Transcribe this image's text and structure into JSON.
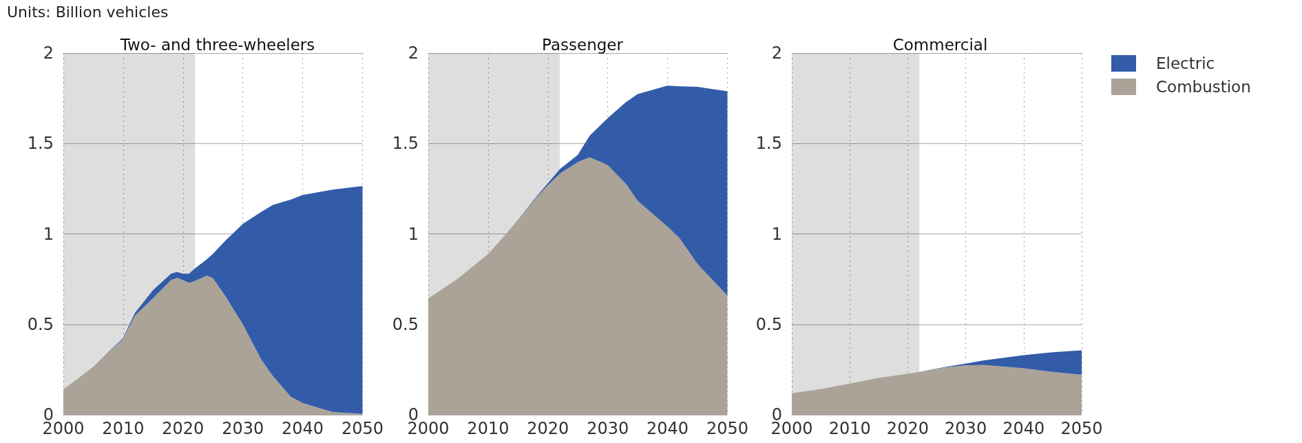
{
  "chart_data": [
    {
      "type": "area",
      "title": "Two- and three-wheelers",
      "annotations": [
        "Units: Billion vehicles"
      ],
      "stacked": true,
      "grid": true,
      "xlim": [
        2000,
        2050
      ],
      "xticks": [
        2000,
        2010,
        2020,
        2030,
        2040,
        2050
      ],
      "ylim": [
        0,
        2
      ],
      "yticks": [
        0,
        0.5,
        1,
        1.5,
        2
      ],
      "bands": [
        {
          "axis": "x",
          "from": 2000,
          "to": 2022,
          "color": "#000000"
        }
      ],
      "x": [
        2000,
        2005,
        2010,
        2012,
        2015,
        2018,
        2019,
        2020,
        2021,
        2022,
        2024,
        2025,
        2027,
        2030,
        2033,
        2035,
        2038,
        2040,
        2045,
        2050
      ],
      "series": [
        {
          "color": "#aba398",
          "values": [
            0.14,
            0.265,
            0.42,
            0.55,
            0.645,
            0.745,
            0.757,
            0.745,
            0.73,
            0.74,
            0.77,
            0.755,
            0.66,
            0.5,
            0.31,
            0.215,
            0.1,
            0.065,
            0.015,
            0.005
          ]
        },
        {
          "color": "#335ca8",
          "values": [
            null,
            0,
            0.005,
            0.015,
            0.045,
            0.035,
            0.033,
            0.035,
            0.05,
            0.07,
            0.09,
            0.135,
            0.3,
            0.555,
            0.81,
            0.945,
            1.09,
            1.15,
            1.23,
            1.26
          ]
        }
      ]
    },
    {
      "type": "area",
      "title": "Passenger",
      "stacked": true,
      "grid": true,
      "xlim": [
        2000,
        2050
      ],
      "xticks": [
        2000,
        2010,
        2020,
        2030,
        2040,
        2050
      ],
      "ylim": [
        0,
        2
      ],
      "yticks": [
        0,
        0.5,
        1,
        1.5,
        2
      ],
      "bands": [
        {
          "axis": "x",
          "from": 2000,
          "to": 2022,
          "color": "#000000"
        }
      ],
      "x": [
        2000,
        2005,
        2010,
        2013,
        2015,
        2018,
        2020,
        2022,
        2025,
        2027,
        2030,
        2033,
        2035,
        2040,
        2042,
        2045,
        2050
      ],
      "series": [
        {
          "color": "#aba398",
          "values": [
            0.643,
            0.754,
            0.889,
            1.0,
            1.079,
            1.198,
            1.27,
            1.333,
            1.397,
            1.424,
            1.38,
            1.278,
            1.183,
            1.04,
            0.976,
            0.833,
            0.659
          ]
        },
        {
          "color": "#335ca8",
          "values": [
            null,
            null,
            null,
            null,
            0,
            0.005,
            0.01,
            0.025,
            0.04,
            0.12,
            0.26,
            0.45,
            0.59,
            0.78,
            0.84,
            0.98,
            1.13
          ]
        }
      ]
    },
    {
      "type": "area",
      "title": "Commercial",
      "stacked": true,
      "grid": true,
      "legend": "top right",
      "xlim": [
        2000,
        2050
      ],
      "xticks": [
        2000,
        2010,
        2020,
        2030,
        2040,
        2050
      ],
      "ylim": [
        0,
        2
      ],
      "yticks": [
        0,
        0.5,
        1,
        1.5,
        2
      ],
      "bands": [
        {
          "axis": "x",
          "from": 2000,
          "to": 2022,
          "color": "#000000"
        }
      ],
      "x": [
        2000,
        2005,
        2010,
        2015,
        2020,
        2022,
        2026,
        2030,
        2033,
        2040,
        2045,
        2050
      ],
      "series": [
        {
          "name": "Combustion",
          "color": "#aba398",
          "values": [
            0.119,
            0.142,
            0.172,
            0.204,
            0.227,
            0.237,
            0.26,
            0.273,
            0.275,
            0.257,
            0.237,
            0.221
          ]
        },
        {
          "name": "Electric",
          "color": "#335ca8",
          "values": [
            null,
            null,
            null,
            null,
            null,
            0,
            0.002,
            0.01,
            0.025,
            0.073,
            0.109,
            0.135
          ]
        }
      ]
    }
  ]
}
